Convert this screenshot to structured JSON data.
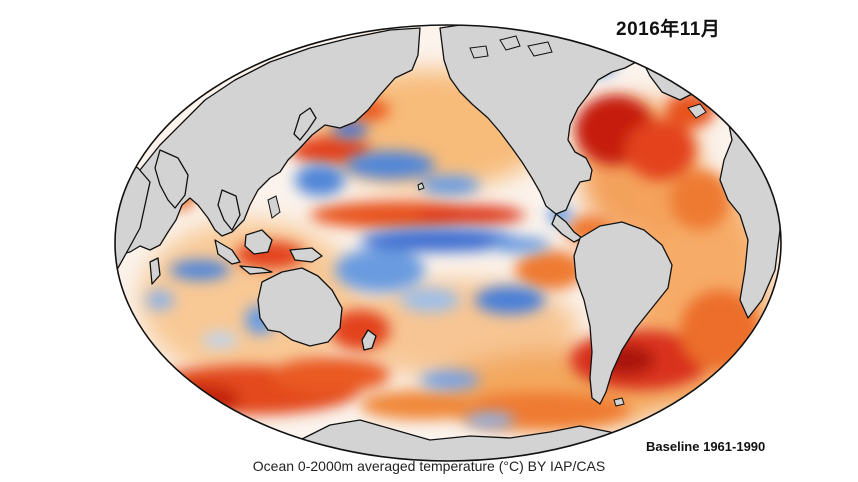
{
  "map": {
    "title": "2016年11月",
    "baseline_label": "Baseline 1961-1990",
    "caption": "Ocean 0-2000m averaged temperature (°C) BY IAP/CAS",
    "projection": "elliptical world projection, Pacific-centered",
    "colors": {
      "land": "#d3d3d3",
      "coastline": "#111111",
      "neutral_ocean": "#fbf3ec",
      "warm_light": "#f7b56e",
      "warm": "#ee7a30",
      "warm_strong": "#df3b1a",
      "warm_extreme": "#b3140f",
      "cool_light": "#bfd5ef",
      "cool": "#6a9be0",
      "cool_strong": "#3f70d2"
    }
  }
}
